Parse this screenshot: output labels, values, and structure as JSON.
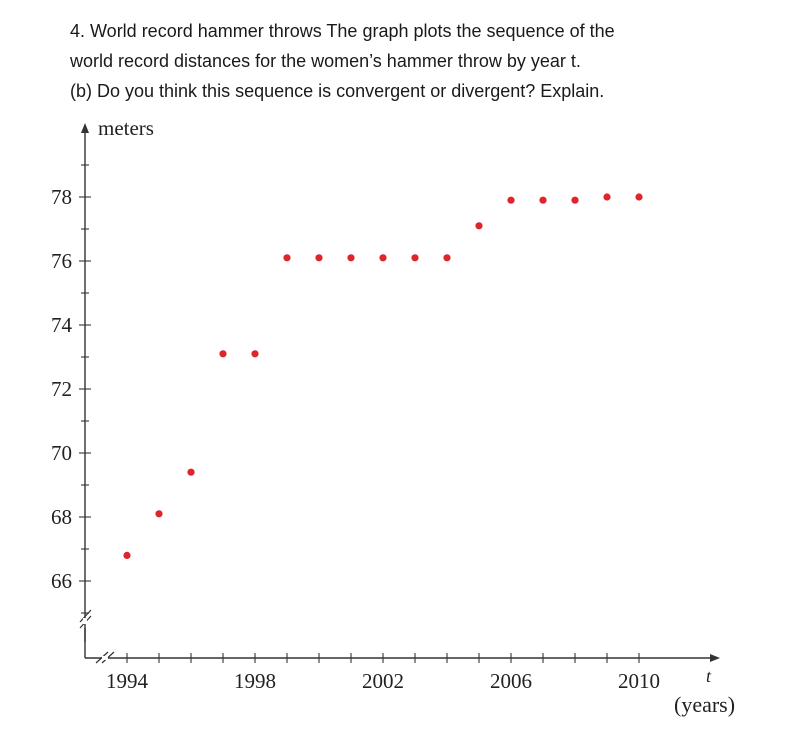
{
  "question": {
    "line1": "4. World record hammer throws The graph plots the sequence of the",
    "line2": "world record distances for the women’s hammer throw by year t.",
    "line3": "(b) Do you think this sequence is convergent or divergent? Explain."
  },
  "chart_data": {
    "type": "scatter",
    "title": "",
    "ylabel": "meters",
    "xlabel": "t",
    "xlabel_units": "(years)",
    "x_ticks": [
      1994,
      1998,
      2002,
      2006,
      2010
    ],
    "y_ticks": [
      66,
      68,
      70,
      72,
      74,
      76,
      78
    ],
    "x_tick_labels": [
      "1994",
      "1998",
      "2002",
      "2006",
      "2010"
    ],
    "y_tick_labels": [
      "66",
      "68",
      "70",
      "72",
      "74",
      "76",
      "78"
    ],
    "xlim": [
      1993,
      2012
    ],
    "ylim": [
      63.5,
      79.5
    ],
    "axis_break": true,
    "grid": false,
    "marker_color": "#e0242b",
    "x": [
      1994,
      1995,
      1996,
      1997,
      1998,
      1999,
      2000,
      2001,
      2002,
      2003,
      2004,
      2005,
      2006,
      2007,
      2008,
      2009,
      2010
    ],
    "y": [
      66.8,
      68.1,
      69.4,
      73.1,
      73.1,
      76.1,
      76.1,
      76.1,
      76.1,
      76.1,
      76.1,
      77.1,
      77.9,
      77.9,
      77.9,
      78.0,
      78.0
    ]
  }
}
